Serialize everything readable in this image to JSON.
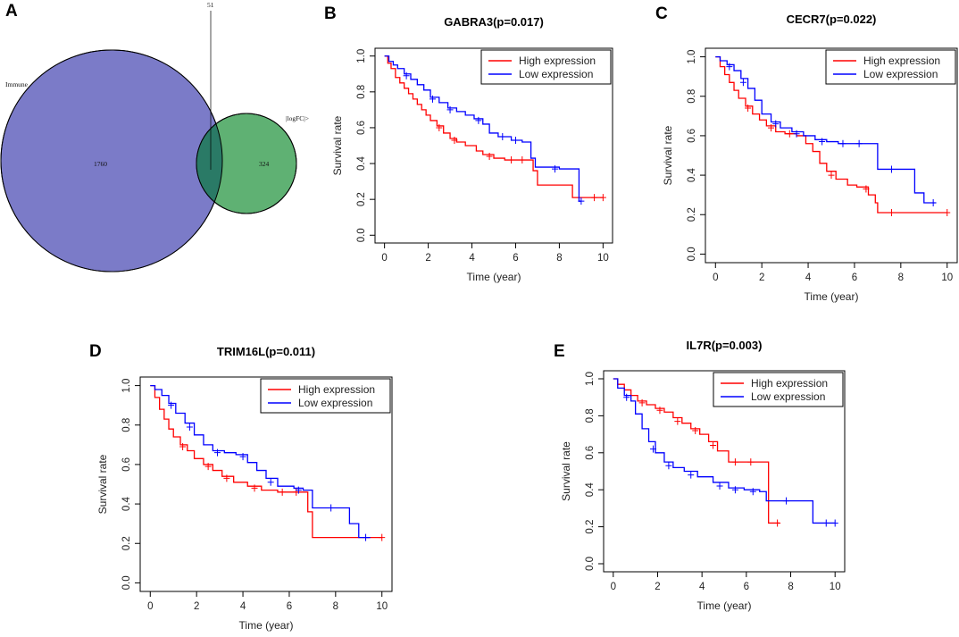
{
  "panels": {
    "A": "A",
    "B": "B",
    "C": "C",
    "D": "D",
    "E": "E"
  },
  "colors": {
    "high": "#ff0000",
    "low": "#0000ff",
    "venn_immune": "#7b7bc8",
    "venn_logfc": "#5fb173",
    "venn_overlap": "#2a7a66"
  },
  "venn": {
    "labels": {
      "immune": "Immune",
      "logfc": "|logFC|>",
      "intersection": "51"
    },
    "counts": {
      "immune_only": "1760",
      "logfc_only": "324",
      "both": 51
    }
  },
  "legend": {
    "high": "High expression",
    "low": "Low expression"
  },
  "chart_data": [
    {
      "id": "B",
      "type": "line",
      "title": "GABRA3(p=0.017)",
      "xlabel": "Time (year)",
      "ylabel": "Survival rate",
      "xlim": [
        0,
        10
      ],
      "ylim": [
        0,
        1
      ],
      "xticks": [
        0,
        2,
        4,
        6,
        8,
        10
      ],
      "yticks": [
        0.0,
        0.2,
        0.4,
        0.6,
        0.8,
        1.0
      ],
      "legend_position": "top-right",
      "series": [
        {
          "name": "High expression",
          "color": "#ff0000",
          "x": [
            0,
            0.15,
            0.3,
            0.5,
            0.7,
            0.9,
            1.1,
            1.3,
            1.5,
            1.7,
            1.9,
            2.1,
            2.4,
            2.7,
            3.0,
            3.3,
            3.7,
            4.2,
            4.5,
            5.0,
            5.5,
            6.0,
            6.5,
            6.8,
            7.0,
            7.8,
            8.6,
            9.0,
            10.0
          ],
          "y": [
            1.0,
            0.96,
            0.93,
            0.88,
            0.85,
            0.82,
            0.79,
            0.76,
            0.73,
            0.7,
            0.67,
            0.64,
            0.61,
            0.57,
            0.54,
            0.52,
            0.5,
            0.47,
            0.45,
            0.43,
            0.42,
            0.42,
            0.42,
            0.36,
            0.28,
            0.28,
            0.21,
            0.21,
            0.21
          ],
          "censor": [
            [
              2.5,
              0.6
            ],
            [
              3.2,
              0.53
            ],
            [
              4.8,
              0.44
            ],
            [
              5.8,
              0.42
            ],
            [
              6.3,
              0.42
            ],
            [
              9.6,
              0.21
            ],
            [
              10.0,
              0.21
            ]
          ]
        },
        {
          "name": "Low expression",
          "color": "#0000ff",
          "x": [
            0,
            0.2,
            0.4,
            0.6,
            0.9,
            1.2,
            1.5,
            1.8,
            2.1,
            2.5,
            2.9,
            3.3,
            3.7,
            4.1,
            4.5,
            4.8,
            5.2,
            5.8,
            6.3,
            6.7,
            6.9,
            7.5,
            8.0,
            8.9,
            9.0
          ],
          "y": [
            1.0,
            0.97,
            0.95,
            0.93,
            0.9,
            0.87,
            0.84,
            0.81,
            0.77,
            0.74,
            0.71,
            0.69,
            0.67,
            0.65,
            0.62,
            0.57,
            0.55,
            0.53,
            0.52,
            0.43,
            0.38,
            0.38,
            0.37,
            0.19,
            0.19
          ],
          "censor": [
            [
              1.0,
              0.89
            ],
            [
              2.2,
              0.76
            ],
            [
              3.0,
              0.7
            ],
            [
              4.3,
              0.64
            ],
            [
              5.4,
              0.55
            ],
            [
              6.0,
              0.53
            ],
            [
              7.8,
              0.37
            ],
            [
              9.0,
              0.19
            ]
          ]
        }
      ]
    },
    {
      "id": "C",
      "type": "line",
      "title": "CECR7(p=0.022)",
      "xlabel": "Time (year)",
      "ylabel": "Survival rate",
      "xlim": [
        0,
        10
      ],
      "ylim": [
        0,
        1
      ],
      "xticks": [
        0,
        2,
        4,
        6,
        8,
        10
      ],
      "yticks": [
        0.0,
        0.2,
        0.4,
        0.6,
        0.8,
        1.0
      ],
      "legend_position": "top-right",
      "series": [
        {
          "name": "High expression",
          "color": "#ff0000",
          "x": [
            0,
            0.2,
            0.4,
            0.6,
            0.8,
            1.0,
            1.3,
            1.6,
            1.9,
            2.2,
            2.6,
            3.0,
            3.5,
            3.9,
            4.2,
            4.5,
            4.8,
            5.2,
            5.7,
            6.1,
            6.6,
            6.9,
            7.0,
            8.0,
            10.0
          ],
          "y": [
            1.0,
            0.95,
            0.91,
            0.87,
            0.83,
            0.79,
            0.75,
            0.71,
            0.68,
            0.65,
            0.62,
            0.61,
            0.6,
            0.56,
            0.52,
            0.46,
            0.42,
            0.38,
            0.35,
            0.34,
            0.3,
            0.26,
            0.21,
            0.21,
            0.21
          ],
          "censor": [
            [
              1.4,
              0.74
            ],
            [
              2.4,
              0.64
            ],
            [
              3.2,
              0.61
            ],
            [
              5.0,
              0.4
            ],
            [
              6.5,
              0.33
            ],
            [
              7.6,
              0.21
            ],
            [
              10.0,
              0.21
            ]
          ]
        },
        {
          "name": "Low expression",
          "color": "#0000ff",
          "x": [
            0,
            0.2,
            0.5,
            0.8,
            1.1,
            1.4,
            1.7,
            2.0,
            2.4,
            2.8,
            3.3,
            3.8,
            4.3,
            4.8,
            5.3,
            6.0,
            6.6,
            7.0,
            7.5,
            8.6,
            9.0,
            9.5
          ],
          "y": [
            1.0,
            0.98,
            0.96,
            0.93,
            0.89,
            0.84,
            0.78,
            0.71,
            0.67,
            0.64,
            0.62,
            0.6,
            0.58,
            0.57,
            0.56,
            0.56,
            0.56,
            0.43,
            0.43,
            0.31,
            0.26,
            0.26
          ],
          "censor": [
            [
              0.6,
              0.95
            ],
            [
              1.2,
              0.87
            ],
            [
              2.6,
              0.66
            ],
            [
              3.5,
              0.61
            ],
            [
              4.6,
              0.57
            ],
            [
              5.5,
              0.56
            ],
            [
              6.2,
              0.56
            ],
            [
              7.6,
              0.43
            ],
            [
              9.4,
              0.26
            ]
          ]
        }
      ]
    },
    {
      "id": "D",
      "type": "line",
      "title": "TRIM16L(p=0.011)",
      "xlabel": "Time (year)",
      "ylabel": "Survival rate",
      "xlim": [
        0,
        10
      ],
      "ylim": [
        0,
        1
      ],
      "xticks": [
        0,
        2,
        4,
        6,
        8,
        10
      ],
      "yticks": [
        0.0,
        0.2,
        0.4,
        0.6,
        0.8,
        1.0
      ],
      "legend_position": "top-right",
      "series": [
        {
          "name": "High expression",
          "color": "#ff0000",
          "x": [
            0,
            0.2,
            0.4,
            0.6,
            0.8,
            1.0,
            1.3,
            1.6,
            1.9,
            2.3,
            2.7,
            3.1,
            3.6,
            4.2,
            4.8,
            5.5,
            6.0,
            6.6,
            6.8,
            7.0,
            8.0,
            10.0
          ],
          "y": [
            1.0,
            0.94,
            0.88,
            0.83,
            0.78,
            0.74,
            0.7,
            0.67,
            0.63,
            0.6,
            0.57,
            0.54,
            0.51,
            0.49,
            0.47,
            0.46,
            0.46,
            0.46,
            0.36,
            0.23,
            0.23,
            0.23
          ],
          "censor": [
            [
              1.4,
              0.69
            ],
            [
              2.5,
              0.59
            ],
            [
              3.3,
              0.53
            ],
            [
              4.5,
              0.48
            ],
            [
              5.7,
              0.46
            ],
            [
              6.3,
              0.46
            ],
            [
              10.0,
              0.23
            ]
          ]
        },
        {
          "name": "Low expression",
          "color": "#0000ff",
          "x": [
            0,
            0.2,
            0.5,
            0.8,
            1.1,
            1.5,
            1.9,
            2.3,
            2.7,
            3.2,
            3.7,
            4.2,
            4.6,
            5.0,
            5.5,
            6.2,
            6.6,
            7.0,
            7.5,
            8.2,
            8.6,
            9.0,
            9.5
          ],
          "y": [
            1.0,
            0.98,
            0.95,
            0.91,
            0.86,
            0.81,
            0.75,
            0.7,
            0.67,
            0.66,
            0.65,
            0.61,
            0.57,
            0.53,
            0.49,
            0.48,
            0.47,
            0.38,
            0.38,
            0.38,
            0.3,
            0.23,
            0.23
          ],
          "censor": [
            [
              0.9,
              0.9
            ],
            [
              1.7,
              0.79
            ],
            [
              2.9,
              0.66
            ],
            [
              4.0,
              0.64
            ],
            [
              5.2,
              0.51
            ],
            [
              6.4,
              0.47
            ],
            [
              7.8,
              0.38
            ],
            [
              9.3,
              0.23
            ]
          ]
        }
      ]
    },
    {
      "id": "E",
      "type": "line",
      "title": "IL7R(p=0.003)",
      "xlabel": "Time (year)",
      "ylabel": "Survival rate",
      "xlim": [
        0,
        10
      ],
      "ylim": [
        0,
        1
      ],
      "xticks": [
        0,
        2,
        4,
        6,
        8,
        10
      ],
      "yticks": [
        0.0,
        0.2,
        0.4,
        0.6,
        0.8,
        1.0
      ],
      "legend_position": "top-right",
      "series": [
        {
          "name": "High expression",
          "color": "#ff0000",
          "x": [
            0,
            0.2,
            0.5,
            0.8,
            1.1,
            1.5,
            1.9,
            2.3,
            2.7,
            3.1,
            3.5,
            3.9,
            4.3,
            4.7,
            5.2,
            5.8,
            6.4,
            6.8,
            7.0,
            7.5
          ],
          "y": [
            1.0,
            0.97,
            0.94,
            0.91,
            0.88,
            0.86,
            0.84,
            0.82,
            0.79,
            0.76,
            0.73,
            0.7,
            0.66,
            0.61,
            0.55,
            0.55,
            0.55,
            0.55,
            0.22,
            0.22
          ],
          "censor": [
            [
              1.3,
              0.87
            ],
            [
              2.1,
              0.83
            ],
            [
              2.9,
              0.77
            ],
            [
              3.7,
              0.72
            ],
            [
              4.5,
              0.64
            ],
            [
              5.5,
              0.55
            ],
            [
              6.2,
              0.55
            ],
            [
              7.4,
              0.22
            ]
          ]
        },
        {
          "name": "Low expression",
          "color": "#0000ff",
          "x": [
            0,
            0.2,
            0.5,
            0.8,
            1.0,
            1.3,
            1.6,
            1.9,
            2.3,
            2.7,
            3.2,
            3.8,
            4.5,
            5.2,
            5.9,
            6.6,
            6.9,
            7.3,
            8.6,
            9.0,
            10.0
          ],
          "y": [
            1.0,
            0.95,
            0.91,
            0.88,
            0.81,
            0.73,
            0.66,
            0.6,
            0.55,
            0.52,
            0.5,
            0.47,
            0.44,
            0.41,
            0.4,
            0.39,
            0.34,
            0.34,
            0.34,
            0.22,
            0.22
          ],
          "censor": [
            [
              0.6,
              0.9
            ],
            [
              1.8,
              0.62
            ],
            [
              2.5,
              0.53
            ],
            [
              3.5,
              0.48
            ],
            [
              4.8,
              0.42
            ],
            [
              5.5,
              0.4
            ],
            [
              6.3,
              0.39
            ],
            [
              7.8,
              0.34
            ],
            [
              9.6,
              0.22
            ],
            [
              10.0,
              0.22
            ]
          ]
        }
      ]
    }
  ]
}
